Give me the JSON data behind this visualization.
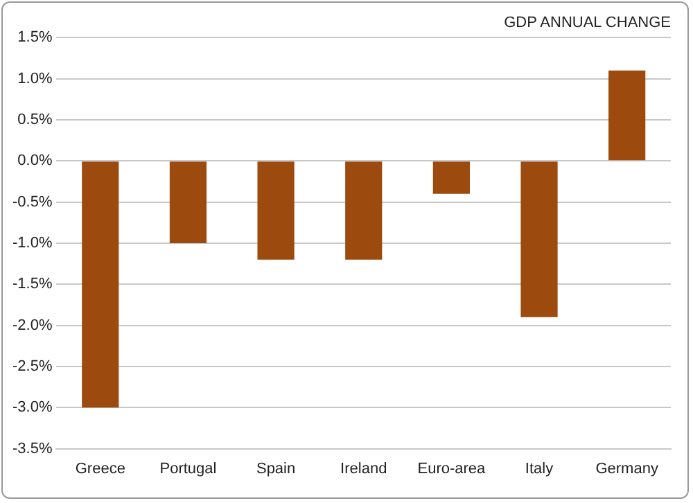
{
  "chart_data": {
    "type": "bar",
    "title": "GDP ANNUAL CHANGE",
    "categories": [
      "Greece",
      "Portugal",
      "Spain",
      "Ireland",
      "Euro-area",
      "Italy",
      "Germany"
    ],
    "values": [
      -3.0,
      -1.0,
      -1.2,
      -1.2,
      -0.4,
      -1.9,
      1.1
    ],
    "color": "#9c4a0e",
    "ylim": [
      -3.5,
      1.5
    ],
    "yticks": [
      {
        "value": -3.5,
        "label": "-3.5%"
      },
      {
        "value": -3,
        "label": "-3.0%"
      },
      {
        "value": -2.5,
        "label": "-2.5%"
      },
      {
        "value": -2,
        "label": "-2.0%"
      },
      {
        "value": -1.5,
        "label": "-1.5%"
      },
      {
        "value": -1,
        "label": "-1.0%"
      },
      {
        "value": -0.5,
        "label": "-0.5%"
      },
      {
        "value": 0,
        "label": "0.0%"
      },
      {
        "value": 0.5,
        "label": "0.5%"
      },
      {
        "value": 1,
        "label": "1.0%"
      },
      {
        "value": 1.5,
        "label": "1.5%"
      }
    ],
    "grid": "y"
  }
}
